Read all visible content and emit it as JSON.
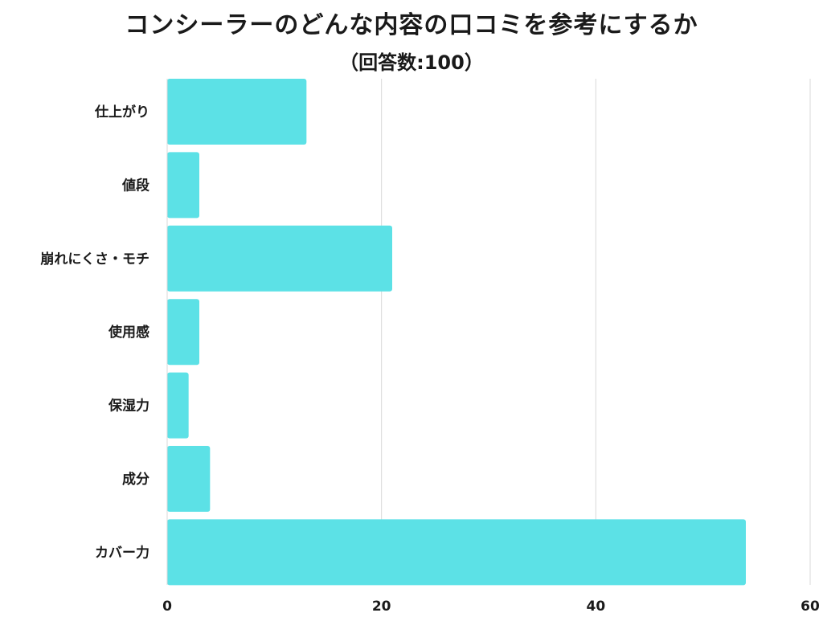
{
  "chart_data": {
    "type": "bar",
    "orientation": "horizontal",
    "title": "コンシーラーのどんな内容の口コミを参考にするか",
    "subtitle": "（回答数:100）",
    "categories": [
      "仕上がり",
      "値段",
      "崩れにくさ・モチ",
      "使用感",
      "保湿力",
      "成分",
      "カバー力"
    ],
    "values": [
      13,
      3,
      21,
      3,
      2,
      4,
      54
    ],
    "xlim": [
      0,
      60
    ],
    "xticks": [
      "0",
      "20",
      "40",
      "60"
    ],
    "grid": true,
    "bar_color": "#5ce1e6",
    "grid_color": "#d9d9d9"
  }
}
